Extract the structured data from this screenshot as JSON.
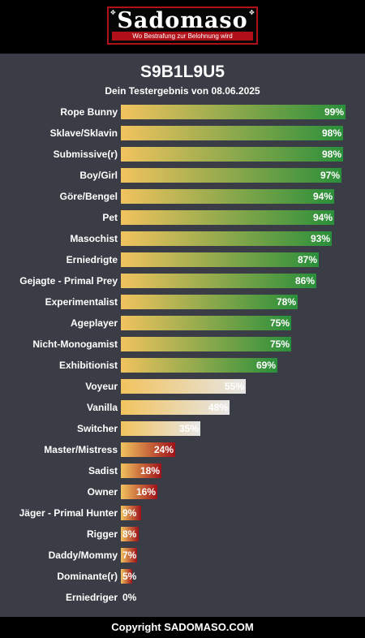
{
  "header": {
    "logo_title": "Sadomaso",
    "logo_subtitle": "Wo Bestrafung zur Belohnung wird"
  },
  "result": {
    "title": "S9B1L9U5",
    "subtitle": "Dein Testergebnis von 08.06.2025"
  },
  "colors": {
    "start": "#f1c35e",
    "green": "#2a8f3a",
    "gray": "#e6e6e6",
    "red": "#a0121a",
    "background": "#3a3d45"
  },
  "chart_data": {
    "type": "bar",
    "orientation": "horizontal",
    "xlim": [
      0,
      100
    ],
    "categories": [
      "Rope Bunny",
      "Sklave/Sklavin",
      "Submissive(r)",
      "Boy/Girl",
      "Göre/Bengel",
      "Pet",
      "Masochist",
      "Erniedrigte",
      "Gejagte - Primal Prey",
      "Experimentalist",
      "Ageplayer",
      "Nicht-Monogamist",
      "Exhibitionist",
      "Voyeur",
      "Vanilla",
      "Switcher",
      "Master/Mistress",
      "Sadist",
      "Owner",
      "Jäger - Primal Hunter",
      "Rigger",
      "Daddy/Mommy",
      "Dominante(r)",
      "Erniedriger"
    ],
    "values": [
      99,
      98,
      98,
      97,
      94,
      94,
      93,
      87,
      86,
      78,
      75,
      75,
      69,
      55,
      48,
      35,
      24,
      18,
      16,
      9,
      8,
      7,
      5,
      0
    ],
    "value_labels": [
      "99%",
      "98%",
      "98%",
      "97%",
      "94%",
      "94%",
      "93%",
      "87%",
      "86%",
      "78%",
      "75%",
      "75%",
      "69%",
      "55%",
      "48%",
      "35%",
      "24%",
      "18%",
      "16%",
      "9%",
      "8%",
      "7%",
      "5%",
      "0%"
    ]
  },
  "footer": {
    "copyright": "Copyright SADOMASO.COM"
  }
}
